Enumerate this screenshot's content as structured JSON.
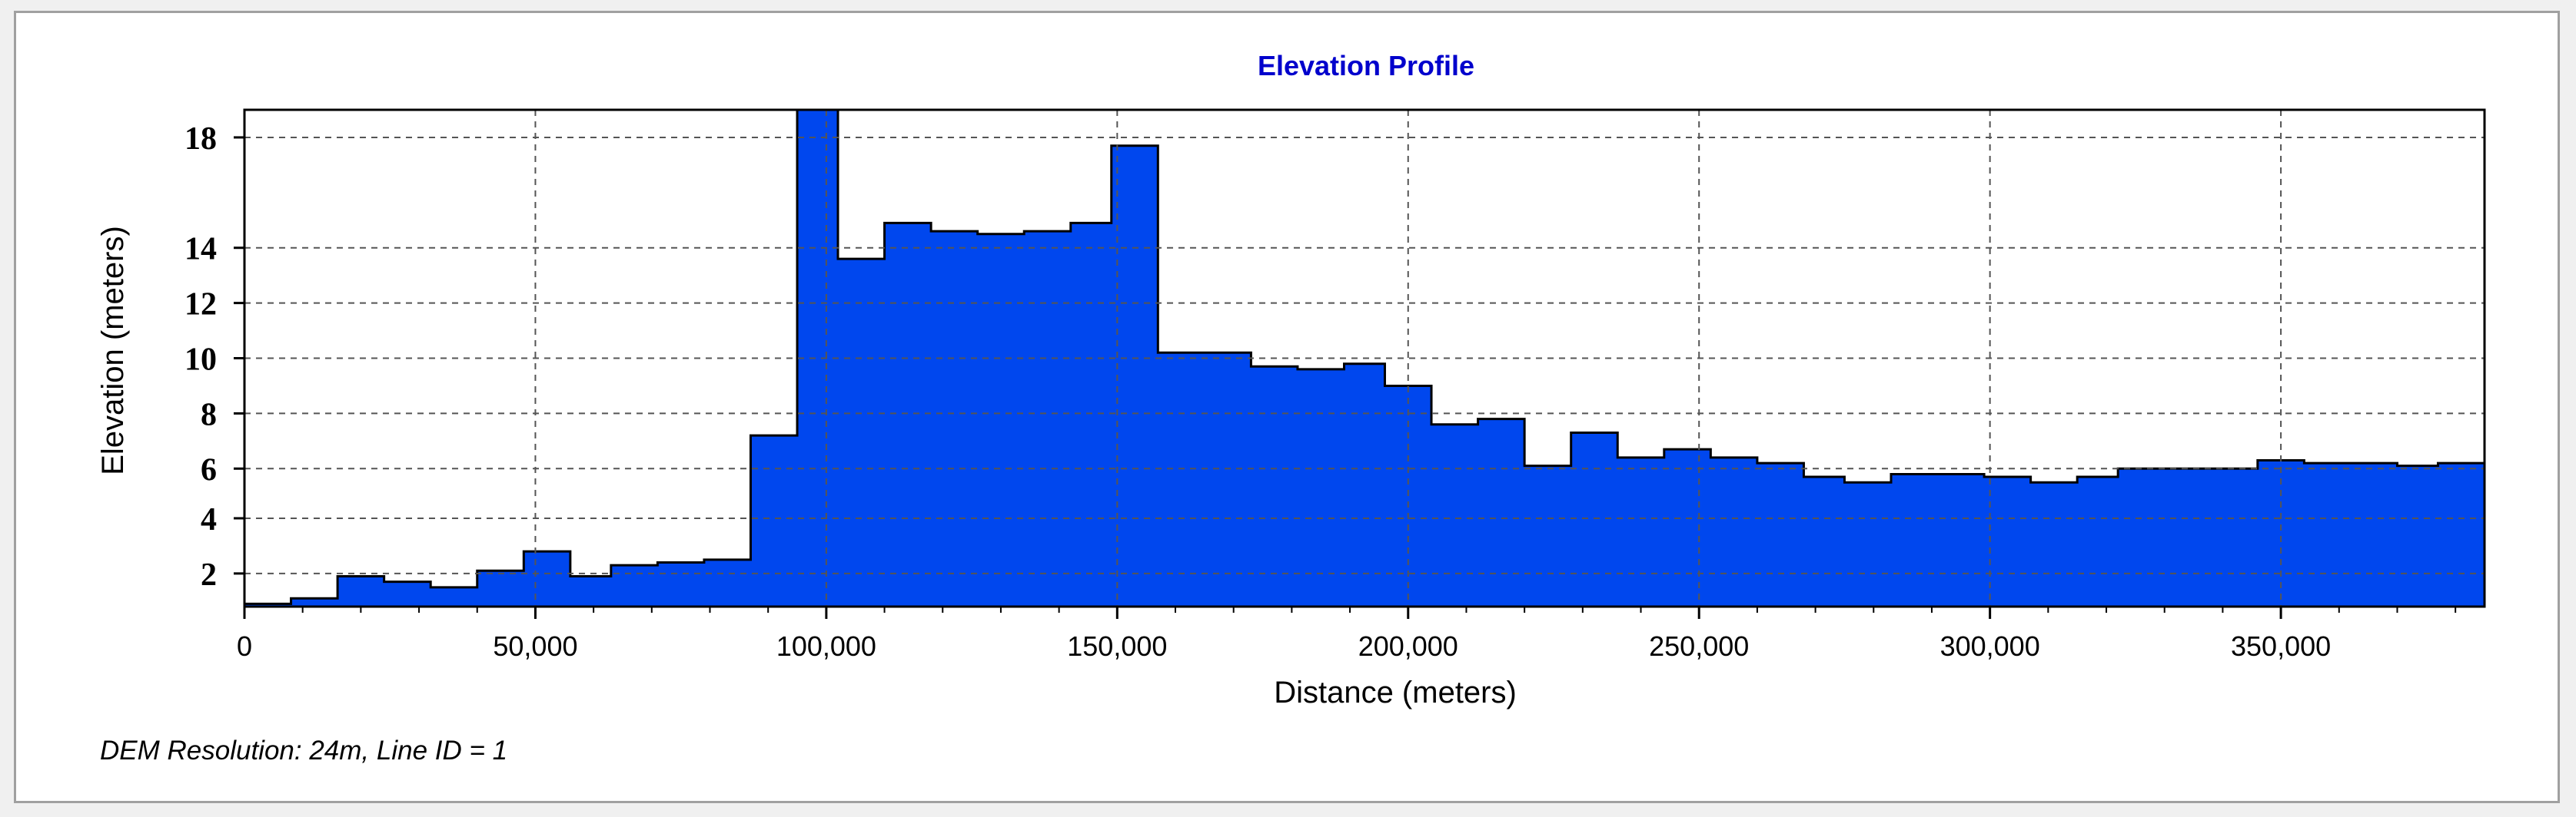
{
  "chart_data": {
    "type": "area",
    "title": "Elevation Profile",
    "xlabel": "Distance (meters)",
    "ylabel": "Elevation (meters)",
    "xlim": [
      0,
      385000
    ],
    "ylim": [
      1,
      19
    ],
    "x_ticks": [
      0,
      50000,
      100000,
      150000,
      200000,
      250000,
      300000,
      350000
    ],
    "x_tick_labels": [
      "0",
      "50,000",
      "100,000",
      "150,000",
      "200,000",
      "250,000",
      "300,000",
      "350,000"
    ],
    "y_ticks": [
      2,
      4,
      6,
      8,
      10,
      12,
      14,
      18
    ],
    "y_tick_labels": [
      "2",
      "4",
      "6",
      "8",
      "10",
      "12",
      "14",
      "18"
    ],
    "y_tick_values_at": [
      2.2,
      4.2,
      6.0,
      8.0,
      10.0,
      12.0,
      14.0,
      18.0
    ],
    "grid": true,
    "legend": "none",
    "series": [
      {
        "x": [
          0,
          8000,
          16000,
          24000,
          32000,
          40000,
          48000,
          56000,
          63000,
          71000,
          79000,
          87000,
          95000,
          102000,
          110000,
          118000,
          126000,
          134000,
          142000,
          149000,
          157000,
          165000,
          173000,
          181000,
          189000,
          196000,
          204000,
          212000,
          220000,
          228000,
          236000,
          244000,
          252000,
          260000,
          268000,
          275000,
          283000,
          291000,
          299000,
          307000,
          315000,
          322000,
          330000,
          338000,
          346000,
          354000,
          362000,
          370000,
          377000,
          385000
        ],
        "y": [
          1.1,
          1.3,
          2.1,
          1.9,
          1.7,
          2.3,
          3.0,
          2.1,
          2.5,
          2.6,
          2.7,
          7.2,
          19.0,
          13.6,
          14.9,
          14.6,
          14.5,
          14.6,
          14.9,
          17.7,
          10.2,
          10.2,
          9.7,
          9.6,
          9.8,
          9.0,
          7.6,
          7.8,
          6.1,
          7.3,
          6.4,
          6.7,
          6.4,
          6.2,
          5.7,
          5.5,
          5.8,
          5.8,
          5.7,
          5.5,
          5.7,
          6.0,
          6.0,
          6.0,
          6.3,
          6.2,
          6.2,
          6.1,
          6.2,
          6.2
        ]
      }
    ],
    "fill_color": "#0047ee",
    "title_color": "#0000cc"
  },
  "footer": {
    "note": "DEM Resolution: 24m, Line ID = 1"
  }
}
